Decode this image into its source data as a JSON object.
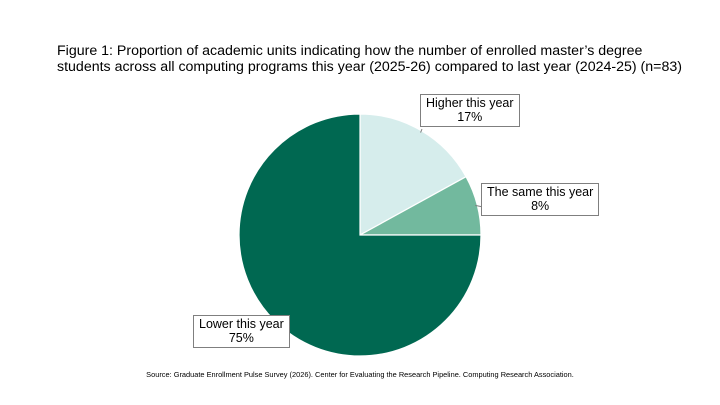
{
  "title": {
    "line1": "Figure 1: Proportion of academic units indicating how the number of enrolled master’s degree",
    "line2": "students across all computing programs this year (2025-26) compared to last year (2024-25) (n=83)"
  },
  "chart_data": {
    "type": "pie",
    "title": "Figure 1: Proportion of academic units indicating how the number of enrolled master’s degree students across all computing programs this year (2025-26) compared to last year (2024-25) (n=83)",
    "slices": [
      {
        "label": "Higher this year",
        "value": 17,
        "value_label": "17%",
        "color": "#d6edec"
      },
      {
        "label": "The same this year",
        "value": 8,
        "value_label": "8%",
        "color": "#72b99e"
      },
      {
        "label": "Lower this year",
        "value": 75,
        "value_label": "75%",
        "color": "#006851"
      }
    ],
    "start": "12 o'clock",
    "direction": "clockwise",
    "legend": "none (callout labels)"
  },
  "source": "Source: Graduate Enrollment Pulse Survey (2026). Center for Evaluating the Research Pipeline. Computing Research Association."
}
